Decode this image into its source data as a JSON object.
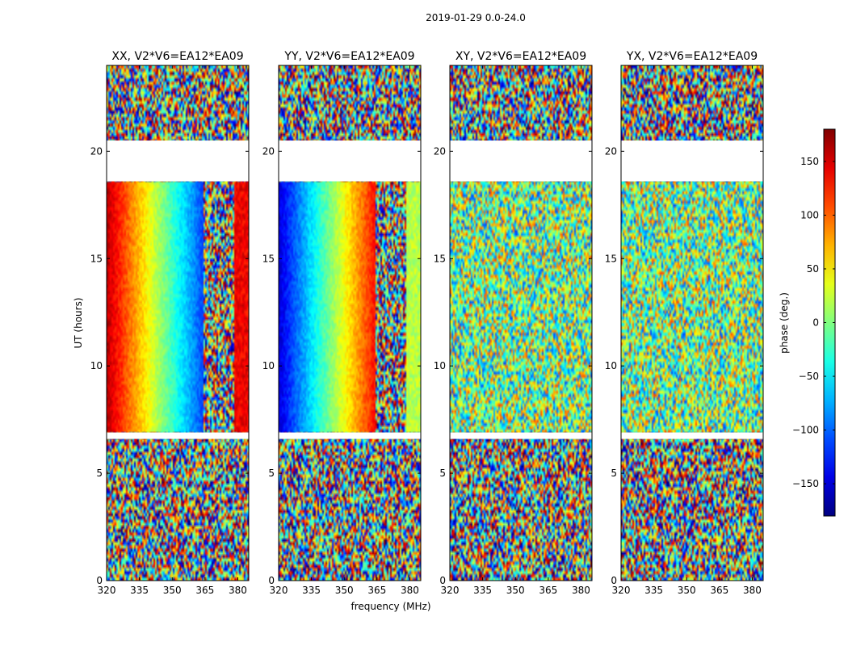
{
  "suptitle": "2019-01-29 0.0-24.0",
  "chart_data": {
    "type": "heatmap",
    "xlabel": "frequency (MHz)",
    "ylabel": "UT (hours)",
    "xlim": [
      320,
      385
    ],
    "ylim": [
      0,
      24
    ],
    "xticks": [
      320,
      335,
      350,
      365,
      380
    ],
    "yticks": [
      0,
      5,
      10,
      15,
      20
    ],
    "panels": [
      {
        "title": "XX, V2*V6=EA12*EA09",
        "mode": "gradient",
        "start": 160,
        "end": -110
      },
      {
        "title": "YY, V2*V6=EA12*EA09",
        "mode": "gradient",
        "start": -150,
        "end": 130
      },
      {
        "title": "XY, V2*V6=EA12*EA09",
        "mode": "noise",
        "start": 0,
        "end": 0
      },
      {
        "title": "YX, V2*V6=EA12*EA09",
        "mode": "noise",
        "start": 0,
        "end": 0
      }
    ],
    "flagged_ut": [
      [
        18.6,
        20.5
      ],
      [
        6.6,
        6.9
      ]
    ],
    "gradient_ut_range": [
      6.9,
      18.6
    ],
    "noisy_freq_start": 364,
    "colorbar": {
      "label": "phase (deg.)",
      "range": [
        -180,
        180
      ],
      "ticks": [
        150,
        100,
        50,
        0,
        -50,
        -100,
        -150
      ],
      "tick_labels": [
        "150",
        "100",
        "50",
        "0",
        "−50",
        "−100",
        "−150"
      ],
      "colormap": "jet"
    }
  }
}
